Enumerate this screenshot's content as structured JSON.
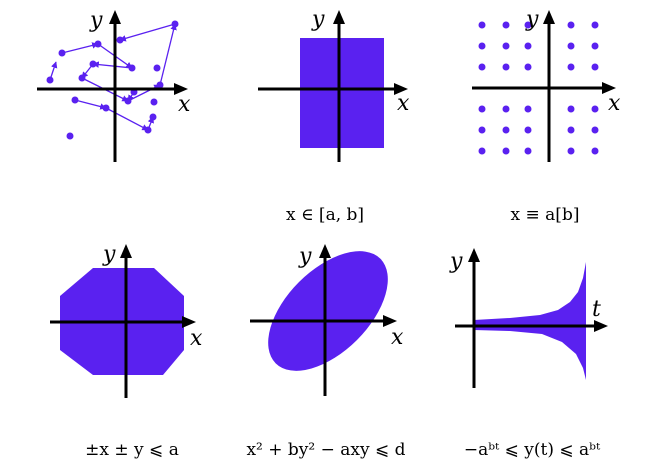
{
  "colors": {
    "shape": "#5a21f0",
    "axis": "#000000"
  },
  "panels": [
    {
      "id": "scatter",
      "xlabel": "x",
      "ylabel": "y",
      "caption": ""
    },
    {
      "id": "box",
      "xlabel": "x",
      "ylabel": "y",
      "caption": "x ∈ [a, b]"
    },
    {
      "id": "lattice",
      "xlabel": "x",
      "ylabel": "y",
      "caption": "x ≡ a[b]"
    },
    {
      "id": "octagon",
      "xlabel": "x",
      "ylabel": "y",
      "caption": "±x ± y ⩽ a"
    },
    {
      "id": "ellipse",
      "xlabel": "x",
      "ylabel": "y",
      "caption": "x² + by² − axy ⩽ d"
    },
    {
      "id": "envelope",
      "xlabel": "t",
      "ylabel": "y",
      "caption": "−aᵇᵗ ⩽ y(t) ⩽ aᵇᵗ"
    }
  ]
}
